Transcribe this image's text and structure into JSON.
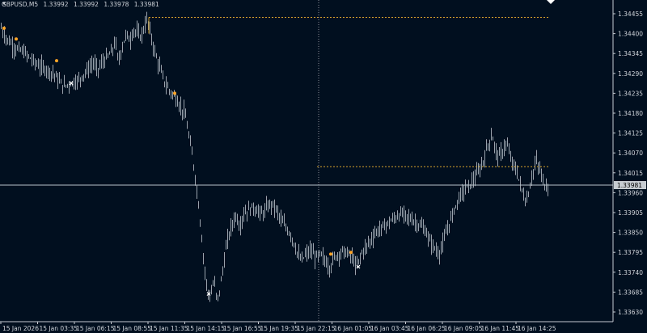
{
  "header": {
    "symbol_timeframe": "GBPUSD,M5",
    "ohlc": [
      "1.33992",
      "1.33992",
      "1.33978",
      "1.33981"
    ]
  },
  "colors": {
    "background": "#010f1f",
    "candles": "#9aa3ad",
    "level_lines": "#d4a32c",
    "crosshair": "#8a9099",
    "current_price_line": "#b9c0c8",
    "buy_marker": "#ffa526",
    "exit_marker": "#ffffff"
  },
  "icons": {
    "menu": "triangle-down-icon",
    "shift": "triangle-down-icon"
  },
  "chart_data": {
    "type": "candlestick",
    "symbol": "GBPUSD",
    "timeframe": "M5",
    "y_ticks": [
      "1.34455",
      "1.34400",
      "1.34345",
      "1.34290",
      "1.34235",
      "1.34180",
      "1.34125",
      "1.34070",
      "1.34015",
      "1.33960",
      "1.33905",
      "1.33850",
      "1.33795",
      "1.33740",
      "1.33685",
      "1.33630"
    ],
    "x_ticks": [
      "15 Jan 2026",
      "15 Jan 03:35",
      "15 Jan 06:15",
      "15 Jan 08:55",
      "15 Jan 11:35",
      "15 Jan 14:15",
      "15 Jan 16:55",
      "15 Jan 19:35",
      "15 Jan 22:15",
      "16 Jan 01:05",
      "16 Jan 03:45",
      "16 Jan 06:25",
      "16 Jan 09:05",
      "16 Jan 11:45",
      "16 Jan 14:25"
    ],
    "current_price": "1.33981",
    "price_path": [
      [
        0,
        1.3442
      ],
      [
        8,
        1.34385
      ],
      [
        18,
        1.3436
      ],
      [
        28,
        1.3435
      ],
      [
        38,
        1.3433
      ],
      [
        48,
        1.3431
      ],
      [
        58,
        1.343
      ],
      [
        66,
        1.3429
      ],
      [
        72,
        1.3427
      ],
      [
        78,
        1.34255
      ],
      [
        84,
        1.3426
      ],
      [
        90,
        1.34265
      ],
      [
        96,
        1.3427
      ],
      [
        102,
        1.34285
      ],
      [
        108,
        1.343
      ],
      [
        115,
        1.3432
      ],
      [
        120,
        1.343
      ],
      [
        126,
        1.3432
      ],
      [
        132,
        1.34335
      ],
      [
        138,
        1.3435
      ],
      [
        142,
        1.3438
      ],
      [
        146,
        1.3432
      ],
      [
        150,
        1.3436
      ],
      [
        156,
        1.344
      ],
      [
        160,
        1.3438
      ],
      [
        165,
        1.3441
      ],
      [
        170,
        1.344
      ],
      [
        174,
        1.3439
      ],
      [
        178,
        1.3442
      ],
      [
        182,
        1.3444
      ],
      [
        186,
        1.34395
      ],
      [
        192,
        1.3434
      ],
      [
        198,
        1.343
      ],
      [
        204,
        1.3426
      ],
      [
        210,
        1.3424
      ],
      [
        216,
        1.34225
      ],
      [
        222,
        1.342
      ],
      [
        228,
        1.3418
      ],
      [
        232,
        1.3413
      ],
      [
        236,
        1.3408
      ],
      [
        240,
        1.3402
      ],
      [
        244,
        1.3395
      ],
      [
        248,
        1.3386
      ],
      [
        252,
        1.3376
      ],
      [
        256,
        1.3369
      ],
      [
        260,
        1.3367
      ],
      [
        264,
        1.3372
      ],
      [
        268,
        1.3366
      ],
      [
        272,
        1.337
      ],
      [
        276,
        1.3376
      ],
      [
        280,
        1.3382
      ],
      [
        286,
        1.3387
      ],
      [
        292,
        1.339
      ],
      [
        296,
        1.3386
      ],
      [
        300,
        1.339
      ],
      [
        306,
        1.3391
      ],
      [
        312,
        1.3392
      ],
      [
        318,
        1.3391
      ],
      [
        324,
        1.339
      ],
      [
        330,
        1.3392
      ],
      [
        336,
        1.3393
      ],
      [
        342,
        1.3391
      ],
      [
        348,
        1.3388
      ],
      [
        354,
        1.3386
      ],
      [
        360,
        1.3384
      ],
      [
        366,
        1.338
      ],
      [
        372,
        1.3377
      ],
      [
        378,
        1.3379
      ],
      [
        384,
        1.338
      ],
      [
        390,
        1.3378
      ],
      [
        396,
        1.3379
      ],
      [
        402,
        1.3377
      ],
      [
        408,
        1.3375
      ],
      [
        412,
        1.3378
      ],
      [
        418,
        1.3379
      ],
      [
        424,
        1.338
      ],
      [
        430,
        1.3379
      ],
      [
        436,
        1.3378
      ],
      [
        440,
        1.3375
      ],
      [
        446,
        1.3379
      ],
      [
        452,
        1.3381
      ],
      [
        458,
        1.3383
      ],
      [
        464,
        1.3385
      ],
      [
        470,
        1.3386
      ],
      [
        476,
        1.3387
      ],
      [
        482,
        1.3388
      ],
      [
        488,
        1.3389
      ],
      [
        494,
        1.339
      ],
      [
        500,
        1.339
      ],
      [
        506,
        1.3389
      ],
      [
        512,
        1.3388
      ],
      [
        518,
        1.3387
      ],
      [
        524,
        1.3386
      ],
      [
        530,
        1.3383
      ],
      [
        536,
        1.3381
      ],
      [
        542,
        1.3379
      ],
      [
        546,
        1.3381
      ],
      [
        550,
        1.3384
      ],
      [
        556,
        1.3388
      ],
      [
        562,
        1.3392
      ],
      [
        568,
        1.3395
      ],
      [
        574,
        1.3397
      ],
      [
        580,
        1.3398
      ],
      [
        586,
        1.34
      ],
      [
        592,
        1.3402
      ],
      [
        596,
        1.3404
      ],
      [
        600,
        1.3407
      ],
      [
        604,
        1.341
      ],
      [
        608,
        1.3412
      ],
      [
        612,
        1.3408
      ],
      [
        616,
        1.3406
      ],
      [
        620,
        1.3407
      ],
      [
        626,
        1.341
      ],
      [
        630,
        1.3406
      ],
      [
        634,
        1.3404
      ],
      [
        638,
        1.3402
      ],
      [
        642,
        1.3399
      ],
      [
        646,
        1.3396
      ],
      [
        650,
        1.3393
      ],
      [
        654,
        1.3397
      ],
      [
        658,
        1.3401
      ],
      [
        662,
        1.3405
      ],
      [
        666,
        1.3403
      ],
      [
        670,
        1.34
      ],
      [
        674,
        1.33975
      ],
      [
        678,
        1.33981
      ]
    ],
    "levels": [
      {
        "x_start": 184,
        "x_end": 680,
        "price": 1.34445
      },
      {
        "x_start": 392,
        "x_end": 680,
        "price": 1.34032
      }
    ],
    "crosshair_x": 394,
    "markers": [
      {
        "type": "buy",
        "x": 5,
        "price": 1.34415
      },
      {
        "type": "buy",
        "x": 20,
        "price": 1.34385
      },
      {
        "type": "buy",
        "x": 70,
        "price": 1.34325
      },
      {
        "type": "exit",
        "x": 88,
        "price": 1.34263
      },
      {
        "type": "buy",
        "x": 216,
        "price": 1.34235
      },
      {
        "type": "exit",
        "x": 258,
        "price": 1.3368
      },
      {
        "type": "buy",
        "x": 409,
        "price": 1.3379
      },
      {
        "type": "buy",
        "x": 434,
        "price": 1.33795
      },
      {
        "type": "exit",
        "x": 443,
        "price": 1.33755
      }
    ]
  }
}
